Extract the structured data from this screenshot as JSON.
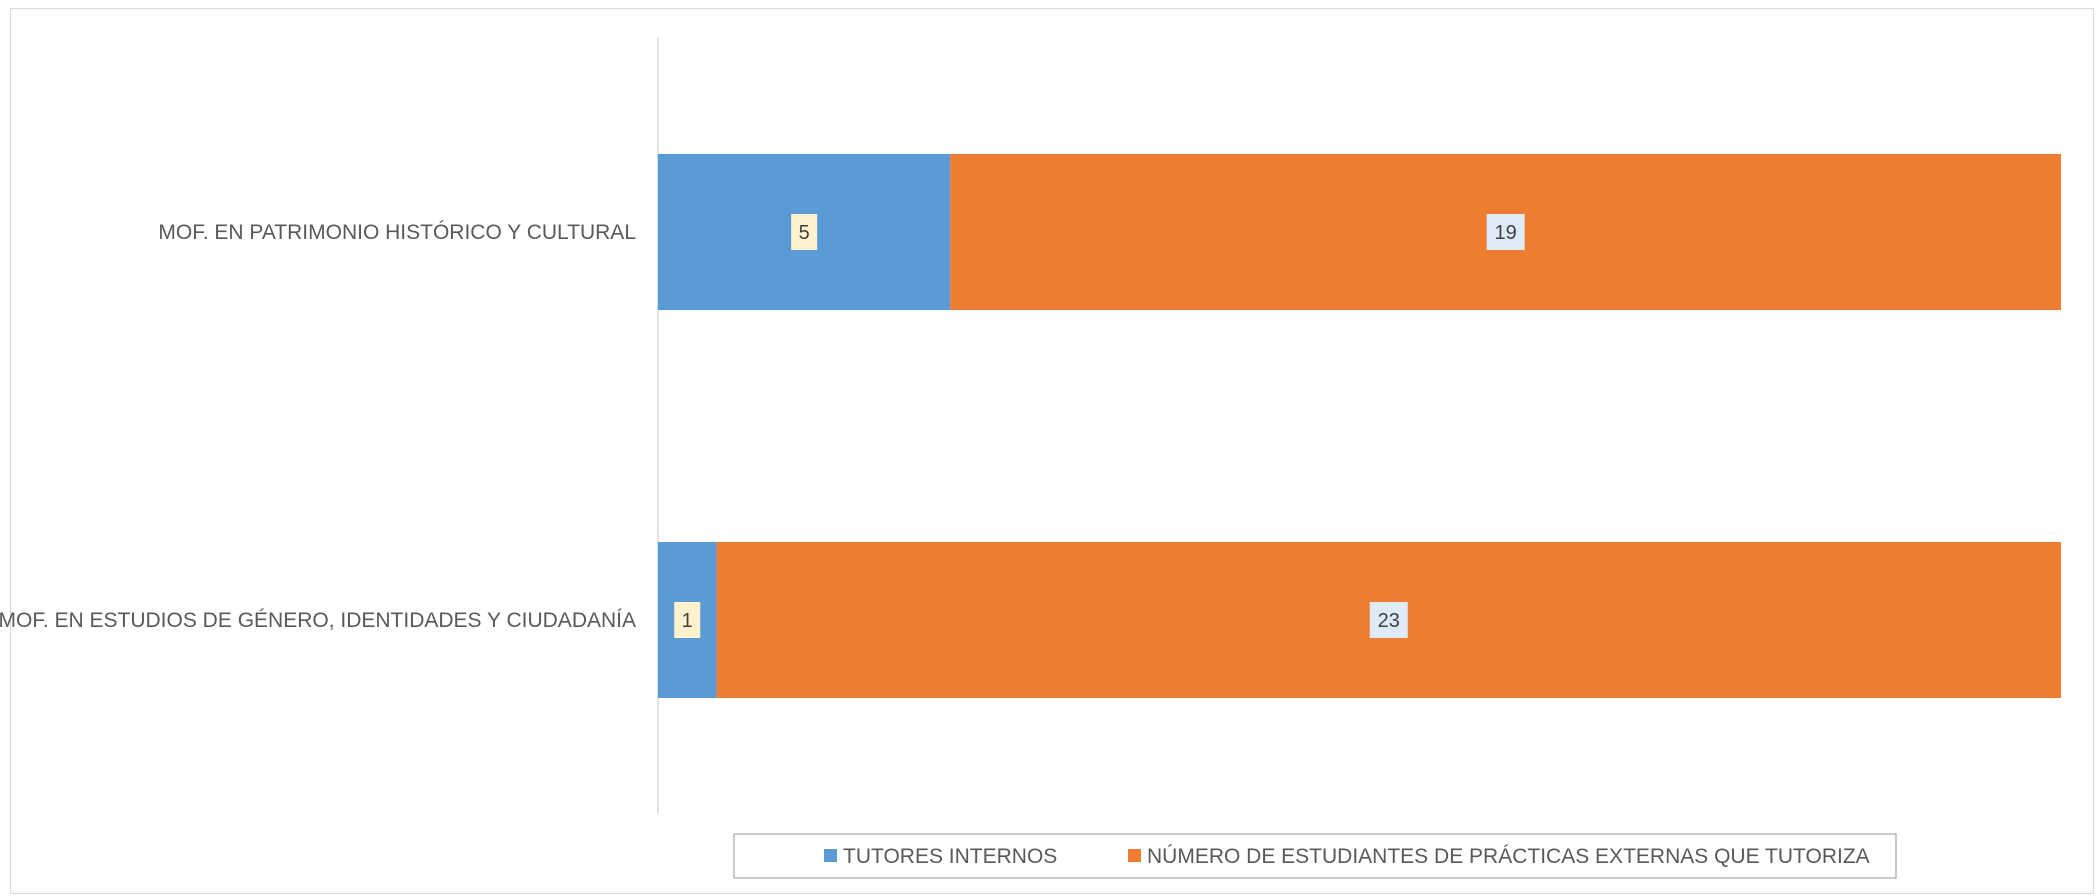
{
  "chart_data": {
    "type": "bar",
    "orientation": "horizontal",
    "stacking": "stacked-100",
    "categories": [
      "MOF.  EN PATRIMONIO HISTÓRICO Y CULTURAL",
      "MOF.  EN ESTUDIOS DE GÉNERO, IDENTIDADES Y CIUDADANÍA"
    ],
    "series": [
      {
        "name": "TUTORES INTERNOS",
        "values": [
          5,
          1
        ],
        "color": "#5b9bd5",
        "label_bg": "#fff2cc"
      },
      {
        "name": "NÚMERO DE ESTUDIANTES DE PRÁCTICAS EXTERNAS QUE TUTORIZA",
        "values": [
          19,
          23
        ],
        "color": "#ed7d31",
        "label_bg": "#deebf7"
      }
    ],
    "legend_position": "bottom",
    "grid": false,
    "title": ""
  }
}
